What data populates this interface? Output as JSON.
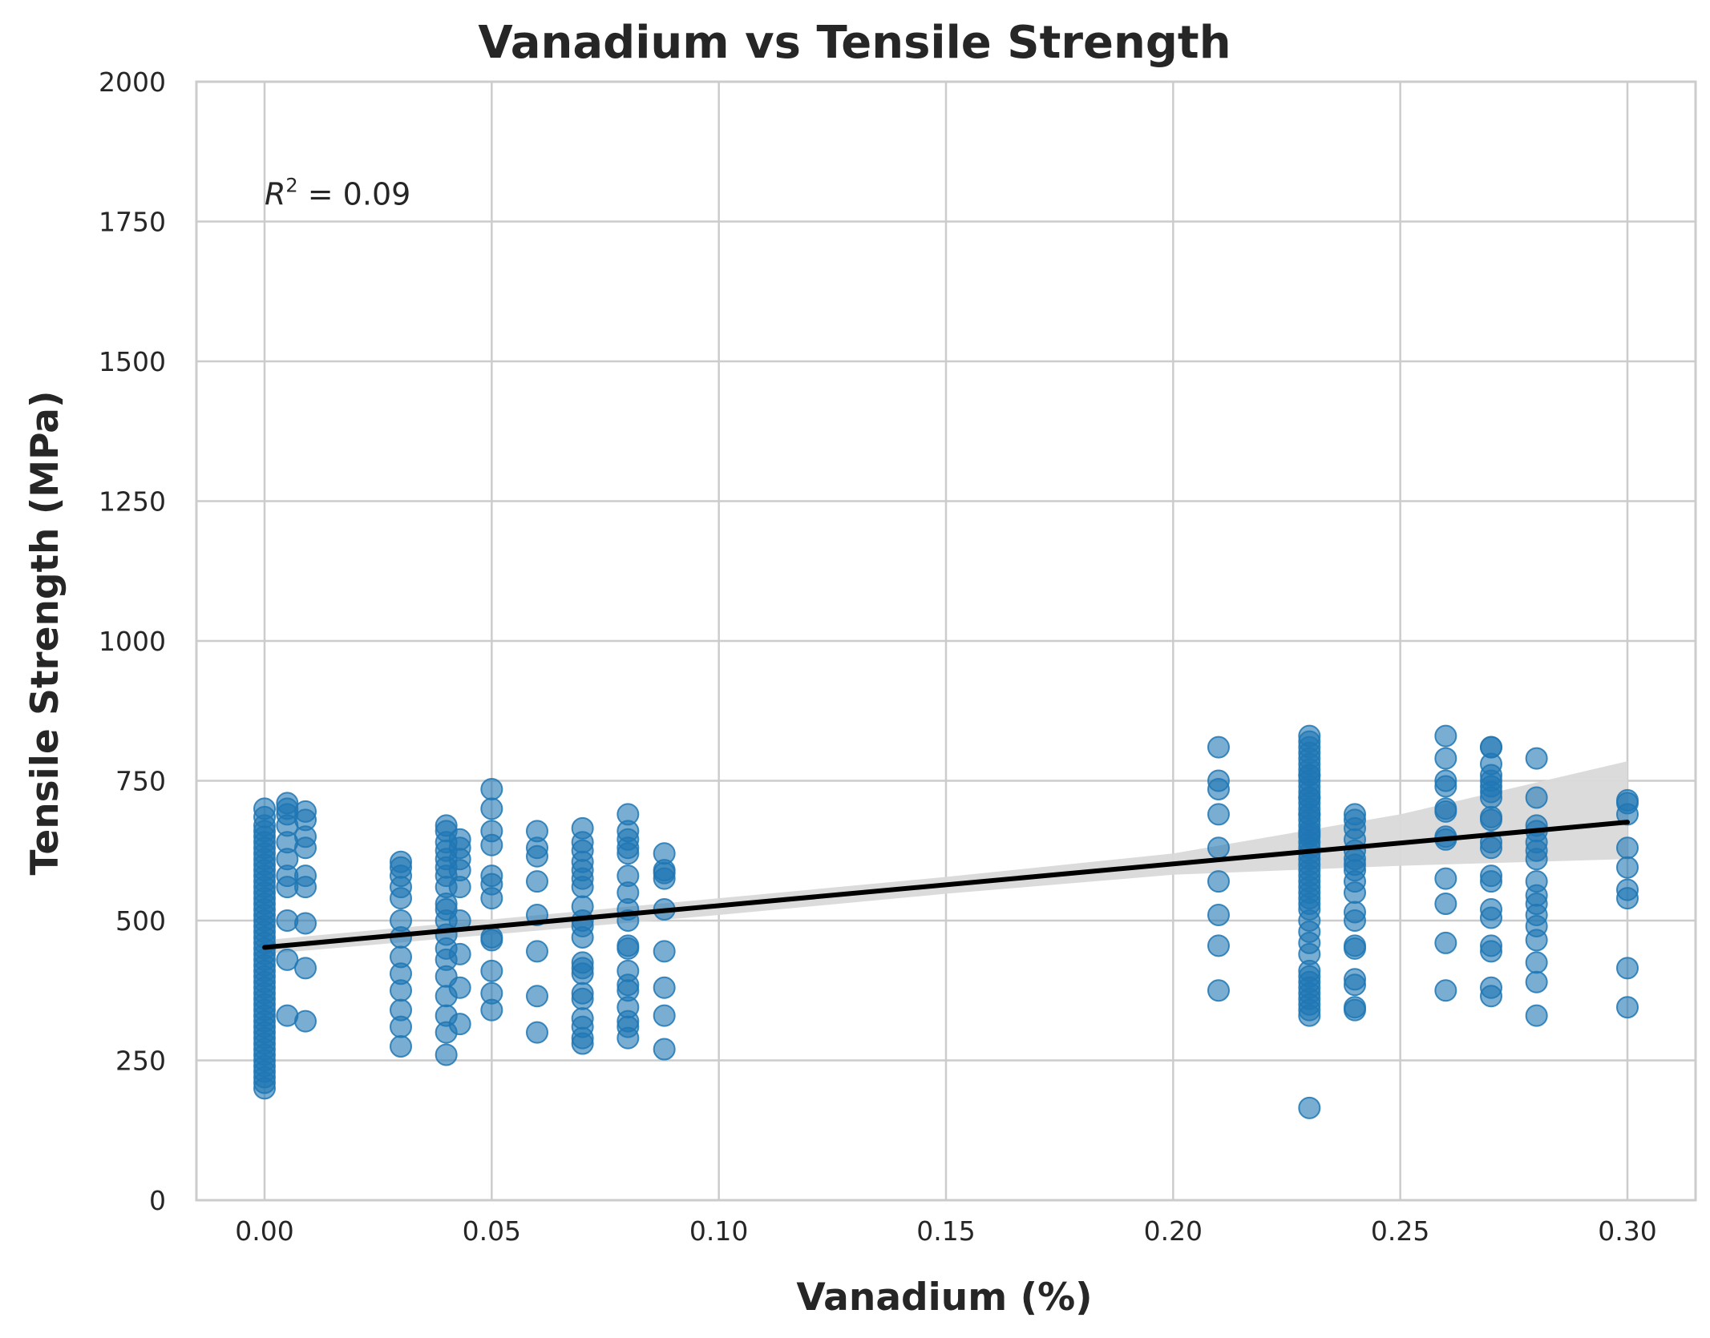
{
  "chart_data": {
    "type": "scatter",
    "title": "Vanadium vs Tensile Strength",
    "xlabel": "Vanadium (%)",
    "ylabel": "Tensile Strength (MPa)",
    "xlim": [
      -0.015,
      0.315
    ],
    "ylim": [
      0,
      2000
    ],
    "x_ticks": [
      0.0,
      0.05,
      0.1,
      0.15,
      0.2,
      0.25,
      0.3
    ],
    "x_tick_labels": [
      "0.00",
      "0.05",
      "0.10",
      "0.15",
      "0.20",
      "0.25",
      "0.30"
    ],
    "y_ticks": [
      0,
      250,
      500,
      750,
      1000,
      1250,
      1500,
      1750,
      2000
    ],
    "y_tick_labels": [
      "0",
      "250",
      "500",
      "750",
      "1000",
      "1250",
      "1500",
      "1750",
      "2000"
    ],
    "grid": true,
    "annotation": {
      "prefix": "R",
      "superscript": "2",
      "text": " = 0.09",
      "x": 0.0,
      "y": 1800
    },
    "colors": {
      "points": "#1f77b4",
      "regression_line": "#000000",
      "confidence_band": "#d9d9d9"
    },
    "regression": {
      "x": [
        0.0,
        0.3
      ],
      "y": [
        452,
        676
      ]
    },
    "confidence_band": {
      "x": [
        0.0,
        0.05,
        0.1,
        0.15,
        0.2,
        0.25,
        0.3
      ],
      "lower": [
        440,
        475,
        510,
        548,
        582,
        598,
        610
      ],
      "upper": [
        465,
        502,
        540,
        578,
        620,
        690,
        785
      ]
    },
    "points": {
      "x": [
        0,
        0,
        0,
        0,
        0,
        0,
        0,
        0,
        0,
        0,
        0,
        0,
        0,
        0,
        0,
        0,
        0,
        0,
        0,
        0,
        0,
        0,
        0,
        0,
        0,
        0,
        0,
        0,
        0,
        0,
        0,
        0,
        0,
        0,
        0,
        0,
        0,
        0,
        0,
        0,
        0,
        0,
        0,
        0,
        0,
        0,
        0,
        0,
        0,
        0,
        0.005,
        0.005,
        0.005,
        0.005,
        0.005,
        0.005,
        0.005,
        0.005,
        0.005,
        0.005,
        0.005,
        0.009,
        0.009,
        0.009,
        0.009,
        0.009,
        0.009,
        0.009,
        0.009,
        0.009,
        0.03,
        0.03,
        0.03,
        0.03,
        0.03,
        0.03,
        0.03,
        0.03,
        0.03,
        0.03,
        0.03,
        0.03,
        0.03,
        0.04,
        0.04,
        0.04,
        0.04,
        0.04,
        0.04,
        0.04,
        0.04,
        0.04,
        0.04,
        0.04,
        0.04,
        0.04,
        0.04,
        0.04,
        0.04,
        0.04,
        0.04,
        0.04,
        0.043,
        0.043,
        0.043,
        0.043,
        0.043,
        0.043,
        0.043,
        0.043,
        0.043,
        0.05,
        0.05,
        0.05,
        0.05,
        0.05,
        0.05,
        0.05,
        0.05,
        0.05,
        0.05,
        0.05,
        0.05,
        0.06,
        0.06,
        0.06,
        0.06,
        0.06,
        0.06,
        0.06,
        0.06,
        0.07,
        0.07,
        0.07,
        0.07,
        0.07,
        0.07,
        0.07,
        0.07,
        0.07,
        0.07,
        0.07,
        0.07,
        0.07,
        0.07,
        0.07,
        0.07,
        0.07,
        0.07,
        0.07,
        0.07,
        0.08,
        0.08,
        0.08,
        0.08,
        0.08,
        0.08,
        0.08,
        0.08,
        0.08,
        0.08,
        0.08,
        0.08,
        0.08,
        0.08,
        0.08,
        0.08,
        0.08,
        0.08,
        0.088,
        0.088,
        0.088,
        0.088,
        0.088,
        0.088,
        0.088,
        0.088,
        0.088,
        0.21,
        0.21,
        0.21,
        0.21,
        0.21,
        0.21,
        0.21,
        0.21,
        0.21,
        0.23,
        0.23,
        0.23,
        0.23,
        0.23,
        0.23,
        0.23,
        0.23,
        0.23,
        0.23,
        0.23,
        0.23,
        0.23,
        0.23,
        0.23,
        0.23,
        0.23,
        0.23,
        0.23,
        0.23,
        0.23,
        0.23,
        0.23,
        0.23,
        0.23,
        0.23,
        0.23,
        0.23,
        0.23,
        0.23,
        0.23,
        0.23,
        0.23,
        0.23,
        0.23,
        0.23,
        0.23,
        0.23,
        0.23,
        0.23,
        0.23,
        0.23,
        0.23,
        0.23,
        0.23,
        0.23,
        0.23,
        0.23,
        0.23,
        0.23,
        0.24,
        0.24,
        0.24,
        0.24,
        0.24,
        0.24,
        0.24,
        0.24,
        0.24,
        0.24,
        0.24,
        0.24,
        0.24,
        0.24,
        0.24,
        0.24,
        0.24,
        0.24,
        0.26,
        0.26,
        0.26,
        0.26,
        0.26,
        0.26,
        0.26,
        0.26,
        0.26,
        0.26,
        0.26,
        0.26,
        0.27,
        0.27,
        0.27,
        0.27,
        0.27,
        0.27,
        0.27,
        0.27,
        0.27,
        0.27,
        0.27,
        0.27,
        0.27,
        0.27,
        0.27,
        0.27,
        0.27,
        0.27,
        0.27,
        0.27,
        0.28,
        0.28,
        0.28,
        0.28,
        0.28,
        0.28,
        0.28,
        0.28,
        0.28,
        0.28,
        0.28,
        0.28,
        0.28,
        0.28,
        0.28,
        0.28,
        0.3,
        0.3,
        0.3,
        0.3,
        0.3,
        0.3,
        0.3,
        0.3,
        0.3
      ],
      "y": [
        200,
        210,
        220,
        230,
        240,
        250,
        260,
        270,
        280,
        290,
        300,
        310,
        320,
        330,
        340,
        350,
        360,
        370,
        380,
        390,
        400,
        410,
        420,
        430,
        440,
        450,
        460,
        470,
        480,
        490,
        500,
        510,
        520,
        530,
        540,
        550,
        560,
        570,
        580,
        590,
        600,
        610,
        620,
        630,
        640,
        650,
        660,
        670,
        685,
        700,
        330,
        430,
        500,
        560,
        580,
        610,
        640,
        670,
        690,
        700,
        710,
        320,
        415,
        495,
        560,
        580,
        630,
        650,
        680,
        695,
        275,
        310,
        340,
        375,
        405,
        435,
        470,
        500,
        540,
        560,
        580,
        595,
        605,
        260,
        300,
        330,
        365,
        400,
        430,
        450,
        475,
        500,
        520,
        530,
        560,
        580,
        595,
        610,
        625,
        640,
        660,
        670,
        315,
        380,
        440,
        500,
        560,
        590,
        610,
        630,
        645,
        340,
        370,
        410,
        465,
        470,
        540,
        565,
        580,
        635,
        660,
        700,
        735,
        300,
        365,
        445,
        510,
        570,
        615,
        630,
        660,
        280,
        290,
        310,
        325,
        360,
        370,
        405,
        415,
        425,
        470,
        490,
        500,
        525,
        560,
        575,
        590,
        605,
        625,
        640,
        665,
        290,
        310,
        320,
        345,
        375,
        385,
        410,
        450,
        455,
        500,
        520,
        550,
        580,
        620,
        630,
        645,
        660,
        690,
        270,
        330,
        380,
        445,
        520,
        575,
        585,
        590,
        620,
        375,
        455,
        510,
        570,
        630,
        690,
        735,
        750,
        810,
        165,
        330,
        340,
        350,
        360,
        370,
        380,
        390,
        400,
        410,
        440,
        460,
        480,
        500,
        520,
        530,
        540,
        550,
        560,
        570,
        580,
        590,
        600,
        610,
        620,
        630,
        640,
        650,
        660,
        670,
        680,
        690,
        700,
        710,
        720,
        730,
        740,
        750,
        760,
        770,
        780,
        790,
        800,
        810,
        820,
        830,
        760,
        720,
        690,
        655,
        340,
        345,
        385,
        395,
        450,
        455,
        500,
        515,
        550,
        570,
        590,
        610,
        625,
        645,
        665,
        680,
        690,
        600,
        375,
        460,
        530,
        575,
        645,
        650,
        695,
        700,
        740,
        750,
        790,
        830,
        365,
        380,
        445,
        455,
        505,
        520,
        570,
        580,
        630,
        640,
        680,
        685,
        720,
        730,
        740,
        750,
        760,
        780,
        810,
        810,
        330,
        390,
        425,
        465,
        490,
        510,
        530,
        545,
        570,
        610,
        625,
        640,
        660,
        670,
        720,
        790,
        345,
        415,
        540,
        555,
        595,
        630,
        690,
        710,
        715
      ]
    }
  }
}
